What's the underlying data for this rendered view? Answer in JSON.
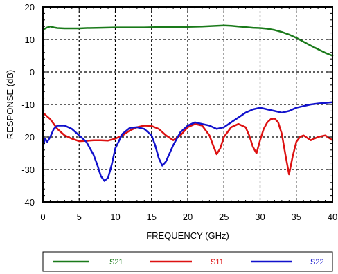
{
  "chart_data": {
    "type": "line",
    "xlabel": "FREQUENCY (GHz)",
    "ylabel": "RESPONSE (dB)",
    "xlim": [
      0,
      40
    ],
    "ylim": [
      -40,
      20
    ],
    "x_ticks": [
      0,
      5,
      10,
      15,
      20,
      25,
      30,
      35,
      40
    ],
    "y_ticks": [
      -40,
      -30,
      -20,
      -10,
      0,
      10,
      20
    ],
    "grid": true,
    "grid_style": "dotted",
    "legend_placement": "bottom",
    "series": [
      {
        "name": "S21",
        "color": "#1a7a1a",
        "x": [
          0,
          0.5,
          1,
          1.5,
          2,
          3,
          4,
          5,
          6,
          8,
          10,
          12,
          14,
          16,
          18,
          20,
          22,
          24,
          25,
          26,
          27,
          28,
          29,
          30,
          31,
          32,
          33,
          34,
          35,
          36,
          37,
          38,
          39,
          40
        ],
        "y": [
          13.0,
          13.6,
          14.0,
          13.7,
          13.5,
          13.4,
          13.4,
          13.4,
          13.5,
          13.6,
          13.7,
          13.7,
          13.7,
          13.8,
          13.8,
          13.9,
          14.0,
          14.2,
          14.3,
          14.2,
          14.0,
          13.8,
          13.6,
          13.5,
          13.3,
          12.9,
          12.3,
          11.5,
          10.5,
          9.3,
          8.1,
          7.0,
          5.9,
          5.0
        ]
      },
      {
        "name": "S11",
        "color": "#dd1111",
        "x": [
          0,
          0.5,
          1,
          1.5,
          2,
          3,
          4,
          5,
          6,
          7,
          8,
          9,
          10,
          11,
          12,
          13,
          14,
          15,
          16,
          17,
          18,
          19,
          20,
          21,
          22,
          23,
          23.5,
          24,
          24.5,
          25,
          26,
          27,
          28,
          28.5,
          29,
          29.5,
          30,
          30.5,
          31,
          31.5,
          32,
          32.5,
          33,
          33.5,
          34,
          34.5,
          35,
          35.5,
          36,
          37,
          38,
          39,
          40
        ],
        "y": [
          -12.5,
          -13.5,
          -14.5,
          -16,
          -17.5,
          -19.5,
          -20.5,
          -21.3,
          -21.2,
          -21.0,
          -21.0,
          -21.1,
          -20.5,
          -19.5,
          -18.0,
          -17.0,
          -16.5,
          -16.6,
          -17.5,
          -19.5,
          -21.0,
          -19.5,
          -17.0,
          -16.0,
          -16.5,
          -19.5,
          -22.5,
          -25.3,
          -23.5,
          -20.0,
          -17.0,
          -16.0,
          -17.0,
          -19.5,
          -23.0,
          -25.0,
          -21.0,
          -17.5,
          -15.5,
          -14.5,
          -14.3,
          -15.5,
          -19.0,
          -25.5,
          -31.5,
          -26.0,
          -21.5,
          -20.0,
          -19.5,
          -21.0,
          -20.0,
          -19.5,
          -21.0
        ]
      },
      {
        "name": "S22",
        "color": "#1111cc",
        "x": [
          0,
          0.3,
          0.6,
          1,
          1.5,
          2,
          3,
          4,
          5,
          6,
          7,
          7.5,
          8,
          8.5,
          9,
          9.5,
          10,
          11,
          12,
          13,
          14,
          15,
          15.5,
          16,
          16.5,
          17,
          18,
          19,
          20,
          21,
          22,
          23,
          24,
          25,
          26,
          27,
          28,
          29,
          30,
          31,
          32,
          33,
          34,
          35,
          36,
          37,
          38,
          39,
          40
        ],
        "y": [
          -23.0,
          -20.5,
          -21.5,
          -20.0,
          -17.5,
          -16.5,
          -16.5,
          -17.5,
          -19.5,
          -21.5,
          -25.5,
          -28.5,
          -32.0,
          -33.5,
          -32.5,
          -28.5,
          -23.5,
          -19.0,
          -17.2,
          -17.0,
          -17.5,
          -19.5,
          -22.5,
          -26.5,
          -28.8,
          -27.5,
          -22.5,
          -18.5,
          -16.5,
          -15.5,
          -16.0,
          -16.5,
          -17.5,
          -17.0,
          -15.5,
          -14.0,
          -12.5,
          -11.5,
          -11.0,
          -11.5,
          -12.0,
          -12.5,
          -12.0,
          -11.0,
          -10.5,
          -10.0,
          -9.7,
          -9.5,
          -9.3
        ]
      }
    ]
  }
}
